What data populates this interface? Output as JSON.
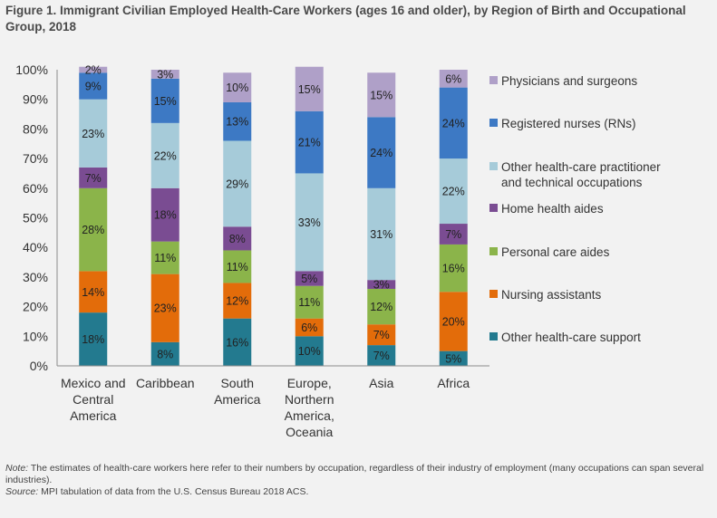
{
  "title": "Figure 1. Immigrant Civilian Employed Health-Care Workers (ages 16 and older), by Region of Birth and Occupational Group, 2018",
  "note_label": "Note:",
  "note_text": " The estimates of health-care workers here refer to their numbers by occupation, regardless of their industry of employment (many occupations can span several industries).",
  "source_label": "Source:",
  "source_text": " MPI tabulation of data from the U.S. Census Bureau 2018 ACS.",
  "chart_data": {
    "type": "bar",
    "stacked": true,
    "percent_stacked": true,
    "title": "Figure 1. Immigrant Civilian Employed Health-Care Workers (ages 16 and older), by Region of Birth and Occupational Group, 2018",
    "xlabel": "",
    "ylabel": "",
    "ylim": [
      0,
      100
    ],
    "yticks": [
      "0%",
      "10%",
      "20%",
      "30%",
      "40%",
      "50%",
      "60%",
      "70%",
      "80%",
      "90%",
      "100%"
    ],
    "grid": false,
    "legend_position": "right",
    "categories": [
      [
        "Mexico and",
        "Central",
        "America"
      ],
      [
        "Caribbean"
      ],
      [
        "South",
        "America"
      ],
      [
        "Europe,",
        "Northern",
        "America,",
        "Oceania"
      ],
      [
        "Asia"
      ],
      [
        "Africa"
      ]
    ],
    "series": [
      {
        "name": "Other health-care support",
        "color": "#237a8f",
        "values": [
          18,
          8,
          16,
          10,
          7,
          5
        ],
        "labels": [
          "18%",
          "8%",
          "16%",
          "10%",
          "7%",
          "5%"
        ]
      },
      {
        "name": "Nursing assistants",
        "color": "#e36c0a",
        "values": [
          14,
          23,
          12,
          6,
          7,
          20
        ],
        "labels": [
          "14%",
          "23%",
          "12%",
          "6%",
          "7%",
          "20%"
        ]
      },
      {
        "name": "Personal care aides",
        "color": "#8bb44a",
        "values": [
          28,
          11,
          11,
          11,
          12,
          16
        ],
        "labels": [
          "28%",
          "11%",
          "11%",
          "11%",
          "12%",
          "16%"
        ]
      },
      {
        "name": "Home health aides",
        "color": "#7a4c92",
        "values": [
          7,
          18,
          8,
          5,
          3,
          7
        ],
        "labels": [
          "7%",
          "18%",
          "8%",
          "5%",
          "3%",
          "7%"
        ]
      },
      {
        "name": "Other health-care practitioner and technical occupations",
        "legend_lines": [
          "Other health-care practitioner",
          "and technical occupations"
        ],
        "color": "#a6cbd9",
        "values": [
          23,
          22,
          29,
          33,
          31,
          22
        ],
        "labels": [
          "23%",
          "22%",
          "29%",
          "33%",
          "31%",
          "22%"
        ]
      },
      {
        "name": "Registered nurses (RNs)",
        "color": "#3d79c4",
        "values": [
          9,
          15,
          13,
          21,
          24,
          24
        ],
        "labels": [
          "9%",
          "15%",
          "13%",
          "21%",
          "24%",
          "24%"
        ]
      },
      {
        "name": "Physicians and surgeons",
        "color": "#afa0c8",
        "values": [
          2,
          3,
          10,
          15,
          15,
          6
        ],
        "labels": [
          "2%",
          "3%",
          "10%",
          "15%",
          "15%",
          "6%"
        ]
      }
    ]
  }
}
